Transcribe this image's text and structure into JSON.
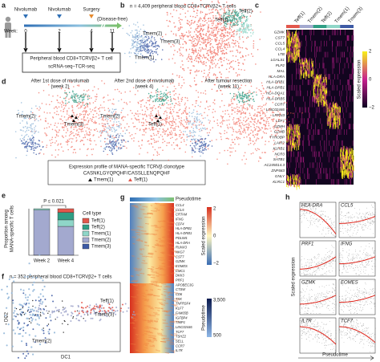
{
  "panel_labels": [
    "a",
    "b",
    "c",
    "d",
    "e",
    "f",
    "g",
    "h"
  ],
  "a": {
    "events": [
      "Nivolumab",
      "Nivolumab",
      "Surgery",
      "(Disease-free)"
    ],
    "week_label": "Week:",
    "weeks": [
      "0",
      "2",
      "4",
      "11"
    ],
    "box": [
      "Peripheral blood CD8+TCRVβ2+ T cell",
      "scRNA-seq–TCR-seq"
    ]
  },
  "b": {
    "title": "n = 4,409 peripheral blood CD8+TCRVβ2+ T cells",
    "clusters": [
      "Tmem(1)",
      "Teff(1)",
      "Teff(2)",
      "Tmem(3)",
      "Tmem(2)"
    ]
  },
  "c": {
    "columns": [
      "Teff(1)",
      "Tmem(2)",
      "Teff(2)",
      "Tmem(1)",
      "Tmem(3)"
    ],
    "genes": [
      "GZMK",
      "CST7",
      "CCL5",
      "CCL4",
      "LTB",
      "LGALS1",
      "PLP2",
      "MAL",
      "HLA-DRA",
      "HLA-DRB1",
      "HLA-DPB1",
      "HLA-DQA1",
      "HLA-DRB5",
      "CCR7",
      "LINC02446",
      "LRRN3",
      "LEF1",
      "GZMH",
      "GZMB",
      "TYROBP",
      "LAIR2",
      "KLRB1",
      "NCR3",
      "SATB1",
      "AC245014.3",
      "ZNF683",
      "GNLY",
      "KLRC1"
    ],
    "colorbar_title": "Scaled expression",
    "colorbar_ticks": [
      "2",
      "0",
      "−2"
    ]
  },
  "d": {
    "views": [
      {
        "title": [
          "After 1st dose of nivolumab",
          "(week 2)"
        ],
        "labels": [
          "Tmem(2)",
          "Tmem(3)"
        ]
      },
      {
        "title": [
          "After 2nd dose of nivolumab",
          "(week 4)"
        ],
        "labels": [
          "Tmem(2)",
          "Teff(1)"
        ]
      },
      {
        "title": [
          "After tumour resection",
          "(week 11)"
        ],
        "labels": []
      }
    ],
    "box": [
      "Expression profile of MANA-specific TCRVβ clonotype",
      "CASNKLGYQPQHF/CASSLLENQPQHF"
    ],
    "legend": [
      "Tmem(1)",
      "Teff(1)"
    ]
  },
  "e": {
    "y_label": [
      "Proportion among",
      "MANA-specific T cells"
    ],
    "p_value": "P ≤ 0.021",
    "categories": [
      "Week 2",
      "Week 4"
    ],
    "legend_title": "Cell type",
    "series": [
      {
        "name": "Teff(1)",
        "color": "#e2574c",
        "values": [
          0,
          0.08
        ]
      },
      {
        "name": "Teff(2)",
        "color": "#2f9e84",
        "values": [
          0,
          0.16
        ]
      },
      {
        "name": "Tmem(1)",
        "color": "#8fd6c8",
        "values": [
          0.03,
          0.14
        ]
      },
      {
        "name": "Tmem(2)",
        "color": "#a3a9cf",
        "values": [
          0.97,
          0.62
        ]
      },
      {
        "name": "Tmem(3)",
        "color": "#3d5aa5",
        "values": [
          0,
          0
        ]
      }
    ]
  },
  "f": {
    "title": "n = 352 peripheral blood CD8+TCRVβ2+ T cells",
    "x_label": "DC1",
    "y_label": "DC2",
    "labels": [
      "Teff(1)",
      "Tmem(3)",
      "Tmem(2)"
    ]
  },
  "g": {
    "top_label": "Pseudotime",
    "genes": [
      "CCL4",
      "CCL5",
      "CRTAM",
      "IFNG",
      "CD74",
      "HLA-DPB1",
      "HLA-DRB1",
      "PDLIM1",
      "HLA-DRA",
      "RUNX3",
      "NKG7",
      "CST7",
      "GZMK",
      "EOMES",
      "CMC1",
      "DKK3",
      "PRF1",
      "APOBEC3G",
      "CTSW",
      "CD6",
      "TXK",
      "TNFRSF4",
      "KLF7",
      "FAM65B",
      "IGFBP4",
      "TIMP1",
      "LINC02446",
      "TCF7",
      "TSHZ2",
      "SELL",
      "CCR7",
      "IL7R"
    ],
    "colorbar_title": "Scaled expression",
    "colorbar_ticks": [
      "2",
      "0",
      "−2"
    ],
    "pseudotime_title": "Pseudotime",
    "pseudotime_ticks": [
      "3,500",
      "500"
    ]
  },
  "h": {
    "genes": [
      "HLA-DRA",
      "CCL5",
      "PRF1",
      "IFNG",
      "GZMK",
      "EOMES",
      "IL7R",
      "TCF7"
    ],
    "y_label": "Scaled expression",
    "x_label": "Pseudotime"
  }
}
